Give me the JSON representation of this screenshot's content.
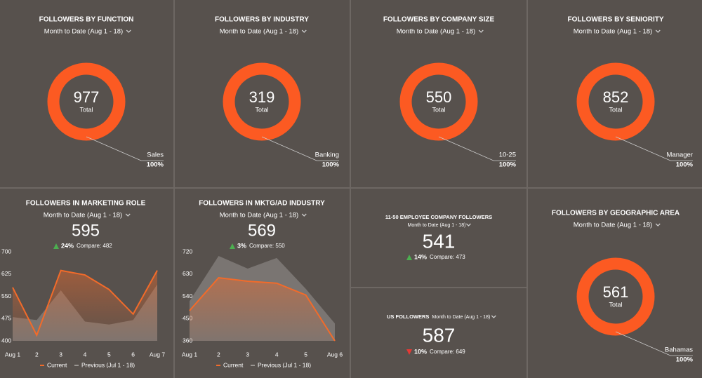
{
  "donuts": [
    {
      "title": "FOLLOWERS BY FUNCTION",
      "period": "Month to Date (Aug 1 - 18)",
      "total": 977,
      "total_label": "Total",
      "segment": "Sales",
      "percent": {
        "value": 100,
        "label": "100%"
      }
    },
    {
      "title": "FOLLOWERS BY INDUSTRY",
      "period": "Month to Date (Aug 1 - 18)",
      "total": 319,
      "total_label": "Total",
      "segment": "Banking",
      "percent": {
        "value": 100,
        "label": "100%"
      }
    },
    {
      "title": "FOLLOWERS BY COMPANY SIZE",
      "period": "Month to Date (Aug 1 - 18)",
      "total": 550,
      "total_label": "Total",
      "segment": "10-25",
      "percent": {
        "value": 100,
        "label": "100%"
      }
    },
    {
      "title": "FOLLOWERS BY SENIORITY",
      "period": "Month to Date (Aug 1 - 18)",
      "total": 852,
      "total_label": "Total",
      "segment": "Manager",
      "percent": {
        "value": 100,
        "label": "100%"
      }
    },
    {
      "title": "FOLLOWERS BY GEOGRAPHIC AREA",
      "period": "Month to Date (Aug 1 - 18)",
      "total": 561,
      "total_label": "Total",
      "segment": "Bahamas",
      "percent": {
        "value": 100,
        "label": "100%"
      }
    }
  ],
  "line_panels": [
    {
      "title": "FOLLOWERS IN MARKETING ROLE",
      "period": "Month to Date (Aug 1 - 18)",
      "value": 595,
      "change": "24%",
      "compare": "Compare: 482",
      "x": [
        "Aug 1",
        "2",
        "3",
        "4",
        "5",
        "6",
        "Aug 7"
      ],
      "ylim": [
        400,
        700
      ],
      "yticks": [
        400,
        475,
        550,
        625,
        700
      ],
      "series": [
        {
          "name": "Current",
          "color": "#f26b2a",
          "values": [
            580,
            419,
            637,
            622,
            573,
            490,
            637
          ]
        },
        {
          "name": "Previous (Jul 1 - 18)",
          "color": "#9a9692",
          "values": [
            480,
            470,
            570,
            465,
            455,
            470,
            590
          ]
        }
      ]
    },
    {
      "title": "FOLLOWERS IN MKTG/AD INDUSTRY",
      "period": "Month to Date (Aug 1 - 18)",
      "value": 569,
      "change": "3%",
      "compare": "Compare: 550",
      "x": [
        "Aug 1",
        "2",
        "3",
        "4",
        "5",
        "Aug 6"
      ],
      "ylim": [
        360,
        720
      ],
      "yticks": [
        360,
        450,
        540,
        630,
        720
      ],
      "series": [
        {
          "name": "Current",
          "color": "#f26b2a",
          "values": [
            482,
            615,
            601,
            593,
            545,
            360
          ]
        },
        {
          "name": "Previous (Jul 1 - 18)",
          "color": "#9a9692",
          "values": [
            520,
            703,
            652,
            695,
            570,
            430
          ]
        }
      ]
    }
  ],
  "numbers": [
    {
      "title": "11-50 EMPLOYEE COMPANY FOLLOWERS",
      "period": "Month to Date (Aug 1 - 18)",
      "value": 541,
      "change": "14%",
      "compare": "Compare: 473"
    },
    {
      "title": "US FOLLOWERS",
      "period": "Month to Date (Aug 1 - 18)",
      "value": 587,
      "change": "10%",
      "compare": "Compare: 649"
    }
  ]
}
